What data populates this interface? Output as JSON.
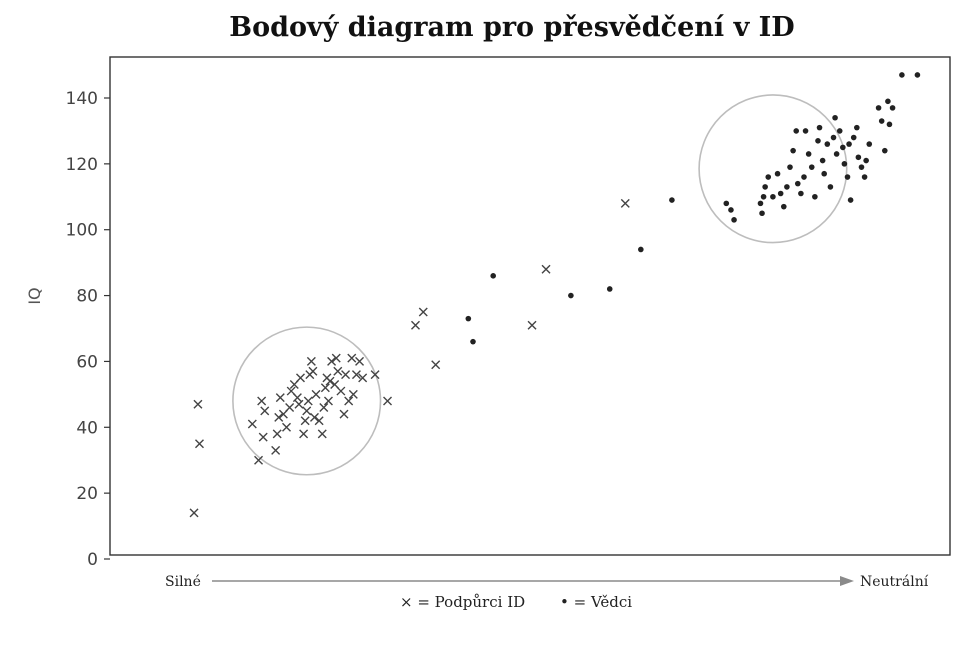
{
  "chart_data": {
    "type": "scatter",
    "title": "Bodový diagram pro přesvědčení v ID",
    "ylabel": "IQ",
    "xlabel_left": "Silné",
    "xlabel_right": "Neutrální",
    "ylim": [
      0,
      150
    ],
    "xlim": [
      0,
      100
    ],
    "yticks": [
      0,
      20,
      40,
      60,
      80,
      100,
      120,
      140
    ],
    "legend": {
      "cross_label": "× = Podpůrci ID",
      "dot_label": "• = Vědci"
    },
    "clusters": [
      {
        "cx": 23,
        "cy": 48,
        "r_data_x": 9.5
      },
      {
        "cx": 83,
        "cy": 118.5,
        "r_data_x": 9.5
      }
    ],
    "series": [
      {
        "marker": "cross",
        "points": [
          [
            8.5,
            14
          ],
          [
            9,
            47
          ],
          [
            9.2,
            35
          ],
          [
            16,
            41
          ],
          [
            16.8,
            30
          ],
          [
            17.2,
            48
          ],
          [
            17.4,
            37
          ],
          [
            17.6,
            45
          ],
          [
            19,
            33
          ],
          [
            19.2,
            38
          ],
          [
            19.4,
            43
          ],
          [
            19.6,
            49
          ],
          [
            20,
            44
          ],
          [
            20.4,
            40
          ],
          [
            20.8,
            46
          ],
          [
            21,
            51
          ],
          [
            21.4,
            53
          ],
          [
            21.8,
            49
          ],
          [
            22,
            47
          ],
          [
            22.2,
            55
          ],
          [
            22.6,
            38
          ],
          [
            22.8,
            42
          ],
          [
            23,
            45
          ],
          [
            23.2,
            48
          ],
          [
            23.4,
            56
          ],
          [
            23.6,
            60
          ],
          [
            23.8,
            57
          ],
          [
            24,
            43
          ],
          [
            24.2,
            50
          ],
          [
            24.6,
            42
          ],
          [
            25,
            38
          ],
          [
            25.2,
            46
          ],
          [
            25.4,
            52
          ],
          [
            25.6,
            55
          ],
          [
            25.8,
            48
          ],
          [
            26,
            54
          ],
          [
            26.2,
            60
          ],
          [
            26.6,
            53
          ],
          [
            26.8,
            61
          ],
          [
            27,
            57
          ],
          [
            27.4,
            51
          ],
          [
            27.8,
            44
          ],
          [
            28,
            56
          ],
          [
            28.4,
            48
          ],
          [
            28.8,
            61
          ],
          [
            29,
            50
          ],
          [
            29.4,
            56
          ],
          [
            29.8,
            60
          ],
          [
            30.2,
            55
          ],
          [
            31.8,
            56
          ],
          [
            33.4,
            48
          ],
          [
            37,
            71
          ],
          [
            38,
            75
          ],
          [
            39.6,
            59
          ],
          [
            52,
            71
          ],
          [
            53.8,
            88
          ],
          [
            64,
            108
          ]
        ]
      },
      {
        "marker": "dot",
        "points": [
          [
            43.8,
            73
          ],
          [
            44.4,
            66
          ],
          [
            47,
            86
          ],
          [
            57,
            80
          ],
          [
            62,
            82
          ],
          [
            66,
            94
          ],
          [
            70,
            109
          ],
          [
            77,
            108
          ],
          [
            77.6,
            106
          ],
          [
            78,
            103
          ],
          [
            81.4,
            108
          ],
          [
            81.6,
            105
          ],
          [
            81.8,
            110
          ],
          [
            82,
            113
          ],
          [
            82.4,
            116
          ],
          [
            83,
            110
          ],
          [
            83.6,
            117
          ],
          [
            84,
            111
          ],
          [
            84.4,
            107
          ],
          [
            84.8,
            113
          ],
          [
            85.2,
            119
          ],
          [
            85.6,
            124
          ],
          [
            86,
            130
          ],
          [
            86.2,
            114
          ],
          [
            86.6,
            111
          ],
          [
            87,
            116
          ],
          [
            87.2,
            130
          ],
          [
            87.6,
            123
          ],
          [
            88,
            119
          ],
          [
            88.4,
            110
          ],
          [
            88.8,
            127
          ],
          [
            89,
            131
          ],
          [
            89.4,
            121
          ],
          [
            89.6,
            117
          ],
          [
            90,
            126
          ],
          [
            90.4,
            113
          ],
          [
            90.8,
            128
          ],
          [
            91,
            134
          ],
          [
            91.2,
            123
          ],
          [
            91.6,
            130
          ],
          [
            92,
            125
          ],
          [
            92.2,
            120
          ],
          [
            92.6,
            116
          ],
          [
            92.8,
            126
          ],
          [
            93,
            109
          ],
          [
            93.4,
            128
          ],
          [
            93.8,
            131
          ],
          [
            94,
            122
          ],
          [
            94.4,
            119
          ],
          [
            94.8,
            116
          ],
          [
            95,
            121
          ],
          [
            95.4,
            126
          ],
          [
            96.6,
            137
          ],
          [
            97,
            133
          ],
          [
            97.4,
            124
          ],
          [
            97.8,
            139
          ],
          [
            98.4,
            137
          ],
          [
            99.6,
            147
          ],
          [
            101.6,
            147
          ],
          [
            98,
            132
          ]
        ]
      }
    ]
  }
}
